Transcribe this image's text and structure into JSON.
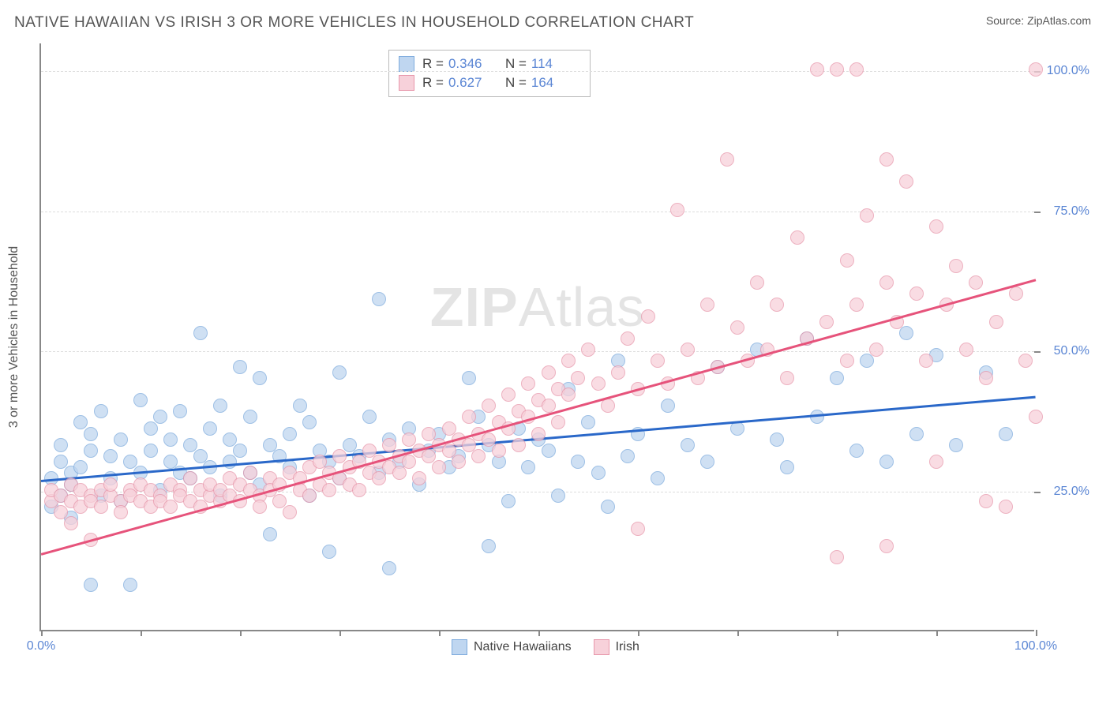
{
  "header": {
    "title": "NATIVE HAWAIIAN VS IRISH 3 OR MORE VEHICLES IN HOUSEHOLD CORRELATION CHART",
    "source_label": "Source:",
    "source_name": "ZipAtlas.com"
  },
  "watermark": {
    "part1": "ZIP",
    "part2": "Atlas"
  },
  "chart": {
    "type": "scatter",
    "y_axis_title": "3 or more Vehicles in Household",
    "xlim": [
      0,
      100
    ],
    "ylim": [
      0,
      105
    ],
    "x_ticks": [
      0,
      10,
      20,
      30,
      40,
      50,
      60,
      70,
      80,
      90,
      100
    ],
    "x_tick_labels": {
      "0": "0.0%",
      "100": "100.0%"
    },
    "y_gridlines": [
      25,
      50,
      75,
      100
    ],
    "y_tick_labels": {
      "25": "25.0%",
      "50": "50.0%",
      "75": "75.0%",
      "100": "100.0%"
    },
    "background_color": "#ffffff",
    "grid_color": "#dddddd",
    "axis_color": "#888888",
    "label_color": "#5b86d4",
    "series": [
      {
        "name": "Native Hawaiians",
        "fill": "#bfd6f0",
        "stroke": "#7eabdd",
        "line_color": "#2a68c9",
        "R": "0.346",
        "N": "114",
        "trend": {
          "x1": 0,
          "y1": 27,
          "x2": 100,
          "y2": 42
        },
        "points": [
          [
            1,
            22
          ],
          [
            1,
            27
          ],
          [
            2,
            24
          ],
          [
            2,
            30
          ],
          [
            2,
            33
          ],
          [
            3,
            20
          ],
          [
            3,
            28
          ],
          [
            3,
            26
          ],
          [
            4,
            37
          ],
          [
            4,
            29
          ],
          [
            5,
            8
          ],
          [
            5,
            32
          ],
          [
            5,
            35
          ],
          [
            6,
            24
          ],
          [
            6,
            39
          ],
          [
            7,
            31
          ],
          [
            7,
            27
          ],
          [
            8,
            34
          ],
          [
            8,
            23
          ],
          [
            9,
            8
          ],
          [
            9,
            30
          ],
          [
            10,
            41
          ],
          [
            10,
            28
          ],
          [
            11,
            36
          ],
          [
            11,
            32
          ],
          [
            12,
            25
          ],
          [
            12,
            38
          ],
          [
            13,
            30
          ],
          [
            13,
            34
          ],
          [
            14,
            28
          ],
          [
            14,
            39
          ],
          [
            15,
            33
          ],
          [
            15,
            27
          ],
          [
            16,
            53
          ],
          [
            16,
            31
          ],
          [
            17,
            29
          ],
          [
            17,
            36
          ],
          [
            18,
            40
          ],
          [
            18,
            24
          ],
          [
            19,
            34
          ],
          [
            19,
            30
          ],
          [
            20,
            47
          ],
          [
            20,
            32
          ],
          [
            21,
            28
          ],
          [
            21,
            38
          ],
          [
            22,
            45
          ],
          [
            22,
            26
          ],
          [
            23,
            33
          ],
          [
            23,
            17
          ],
          [
            24,
            31
          ],
          [
            25,
            35
          ],
          [
            25,
            29
          ],
          [
            26,
            40
          ],
          [
            27,
            24
          ],
          [
            27,
            37
          ],
          [
            28,
            32
          ],
          [
            29,
            14
          ],
          [
            29,
            30
          ],
          [
            30,
            46
          ],
          [
            30,
            27
          ],
          [
            31,
            33
          ],
          [
            32,
            31
          ],
          [
            33,
            38
          ],
          [
            34,
            59
          ],
          [
            34,
            28
          ],
          [
            35,
            11
          ],
          [
            35,
            34
          ],
          [
            36,
            30
          ],
          [
            37,
            36
          ],
          [
            38,
            26
          ],
          [
            39,
            32
          ],
          [
            40,
            35
          ],
          [
            41,
            29
          ],
          [
            42,
            31
          ],
          [
            43,
            45
          ],
          [
            44,
            38
          ],
          [
            45,
            15
          ],
          [
            45,
            33
          ],
          [
            46,
            30
          ],
          [
            47,
            23
          ],
          [
            48,
            36
          ],
          [
            49,
            29
          ],
          [
            50,
            34
          ],
          [
            51,
            32
          ],
          [
            52,
            24
          ],
          [
            53,
            43
          ],
          [
            54,
            30
          ],
          [
            55,
            37
          ],
          [
            56,
            28
          ],
          [
            57,
            22
          ],
          [
            58,
            48
          ],
          [
            59,
            31
          ],
          [
            60,
            35
          ],
          [
            62,
            27
          ],
          [
            63,
            40
          ],
          [
            65,
            33
          ],
          [
            67,
            30
          ],
          [
            68,
            47
          ],
          [
            70,
            36
          ],
          [
            72,
            50
          ],
          [
            74,
            34
          ],
          [
            75,
            29
          ],
          [
            77,
            52
          ],
          [
            78,
            38
          ],
          [
            80,
            45
          ],
          [
            82,
            32
          ],
          [
            83,
            48
          ],
          [
            85,
            30
          ],
          [
            87,
            53
          ],
          [
            88,
            35
          ],
          [
            90,
            49
          ],
          [
            92,
            33
          ],
          [
            95,
            46
          ],
          [
            97,
            35
          ]
        ]
      },
      {
        "name": "Irish",
        "fill": "#f7d1da",
        "stroke": "#e797ab",
        "line_color": "#e6537b",
        "R": "0.627",
        "N": "164",
        "trend": {
          "x1": 0,
          "y1": 14,
          "x2": 100,
          "y2": 63
        },
        "points": [
          [
            1,
            23
          ],
          [
            1,
            25
          ],
          [
            2,
            21
          ],
          [
            2,
            24
          ],
          [
            3,
            19
          ],
          [
            3,
            23
          ],
          [
            3,
            26
          ],
          [
            4,
            22
          ],
          [
            4,
            25
          ],
          [
            5,
            16
          ],
          [
            5,
            24
          ],
          [
            5,
            23
          ],
          [
            6,
            25
          ],
          [
            6,
            22
          ],
          [
            7,
            24
          ],
          [
            7,
            26
          ],
          [
            8,
            23
          ],
          [
            8,
            21
          ],
          [
            9,
            25
          ],
          [
            9,
            24
          ],
          [
            10,
            23
          ],
          [
            10,
            26
          ],
          [
            11,
            22
          ],
          [
            11,
            25
          ],
          [
            12,
            24
          ],
          [
            12,
            23
          ],
          [
            13,
            26
          ],
          [
            13,
            22
          ],
          [
            14,
            25
          ],
          [
            14,
            24
          ],
          [
            15,
            23
          ],
          [
            15,
            27
          ],
          [
            16,
            25
          ],
          [
            16,
            22
          ],
          [
            17,
            24
          ],
          [
            17,
            26
          ],
          [
            18,
            23
          ],
          [
            18,
            25
          ],
          [
            19,
            27
          ],
          [
            19,
            24
          ],
          [
            20,
            23
          ],
          [
            20,
            26
          ],
          [
            21,
            25
          ],
          [
            21,
            28
          ],
          [
            22,
            24
          ],
          [
            22,
            22
          ],
          [
            23,
            27
          ],
          [
            23,
            25
          ],
          [
            24,
            26
          ],
          [
            24,
            23
          ],
          [
            25,
            28
          ],
          [
            25,
            21
          ],
          [
            26,
            27
          ],
          [
            26,
            25
          ],
          [
            27,
            29
          ],
          [
            27,
            24
          ],
          [
            28,
            26
          ],
          [
            28,
            30
          ],
          [
            29,
            25
          ],
          [
            29,
            28
          ],
          [
            30,
            27
          ],
          [
            30,
            31
          ],
          [
            31,
            26
          ],
          [
            31,
            29
          ],
          [
            32,
            30
          ],
          [
            32,
            25
          ],
          [
            33,
            28
          ],
          [
            33,
            32
          ],
          [
            34,
            27
          ],
          [
            34,
            30
          ],
          [
            35,
            29
          ],
          [
            35,
            33
          ],
          [
            36,
            31
          ],
          [
            36,
            28
          ],
          [
            37,
            34
          ],
          [
            37,
            30
          ],
          [
            38,
            32
          ],
          [
            38,
            27
          ],
          [
            39,
            35
          ],
          [
            39,
            31
          ],
          [
            40,
            33
          ],
          [
            40,
            29
          ],
          [
            41,
            36
          ],
          [
            41,
            32
          ],
          [
            42,
            34
          ],
          [
            42,
            30
          ],
          [
            43,
            38
          ],
          [
            43,
            33
          ],
          [
            44,
            35
          ],
          [
            44,
            31
          ],
          [
            45,
            40
          ],
          [
            45,
            34
          ],
          [
            46,
            37
          ],
          [
            46,
            32
          ],
          [
            47,
            42
          ],
          [
            47,
            36
          ],
          [
            48,
            39
          ],
          [
            48,
            33
          ],
          [
            49,
            44
          ],
          [
            49,
            38
          ],
          [
            50,
            41
          ],
          [
            50,
            35
          ],
          [
            51,
            46
          ],
          [
            51,
            40
          ],
          [
            52,
            43
          ],
          [
            52,
            37
          ],
          [
            53,
            48
          ],
          [
            53,
            42
          ],
          [
            54,
            45
          ],
          [
            55,
            50
          ],
          [
            56,
            44
          ],
          [
            57,
            40
          ],
          [
            58,
            46
          ],
          [
            59,
            52
          ],
          [
            60,
            43
          ],
          [
            60,
            18
          ],
          [
            61,
            56
          ],
          [
            62,
            48
          ],
          [
            63,
            44
          ],
          [
            64,
            75
          ],
          [
            65,
            50
          ],
          [
            66,
            45
          ],
          [
            67,
            58
          ],
          [
            68,
            47
          ],
          [
            69,
            84
          ],
          [
            70,
            54
          ],
          [
            71,
            48
          ],
          [
            72,
            62
          ],
          [
            73,
            50
          ],
          [
            74,
            58
          ],
          [
            75,
            45
          ],
          [
            76,
            70
          ],
          [
            77,
            52
          ],
          [
            78,
            100
          ],
          [
            79,
            55
          ],
          [
            80,
            100
          ],
          [
            80,
            13
          ],
          [
            81,
            66
          ],
          [
            81,
            48
          ],
          [
            82,
            58
          ],
          [
            82,
            100
          ],
          [
            83,
            74
          ],
          [
            84,
            50
          ],
          [
            85,
            84
          ],
          [
            85,
            62
          ],
          [
            85,
            15
          ],
          [
            86,
            55
          ],
          [
            87,
            80
          ],
          [
            88,
            60
          ],
          [
            89,
            48
          ],
          [
            90,
            72
          ],
          [
            90,
            30
          ],
          [
            91,
            58
          ],
          [
            92,
            65
          ],
          [
            93,
            50
          ],
          [
            94,
            62
          ],
          [
            95,
            45
          ],
          [
            95,
            23
          ],
          [
            96,
            55
          ],
          [
            97,
            22
          ],
          [
            98,
            60
          ],
          [
            99,
            48
          ],
          [
            100,
            100
          ],
          [
            100,
            38
          ]
        ]
      }
    ],
    "legend": [
      {
        "label": "Native Hawaiians",
        "fill": "#bfd6f0",
        "stroke": "#7eabdd"
      },
      {
        "label": "Irish",
        "fill": "#f7d1da",
        "stroke": "#e797ab"
      }
    ]
  }
}
